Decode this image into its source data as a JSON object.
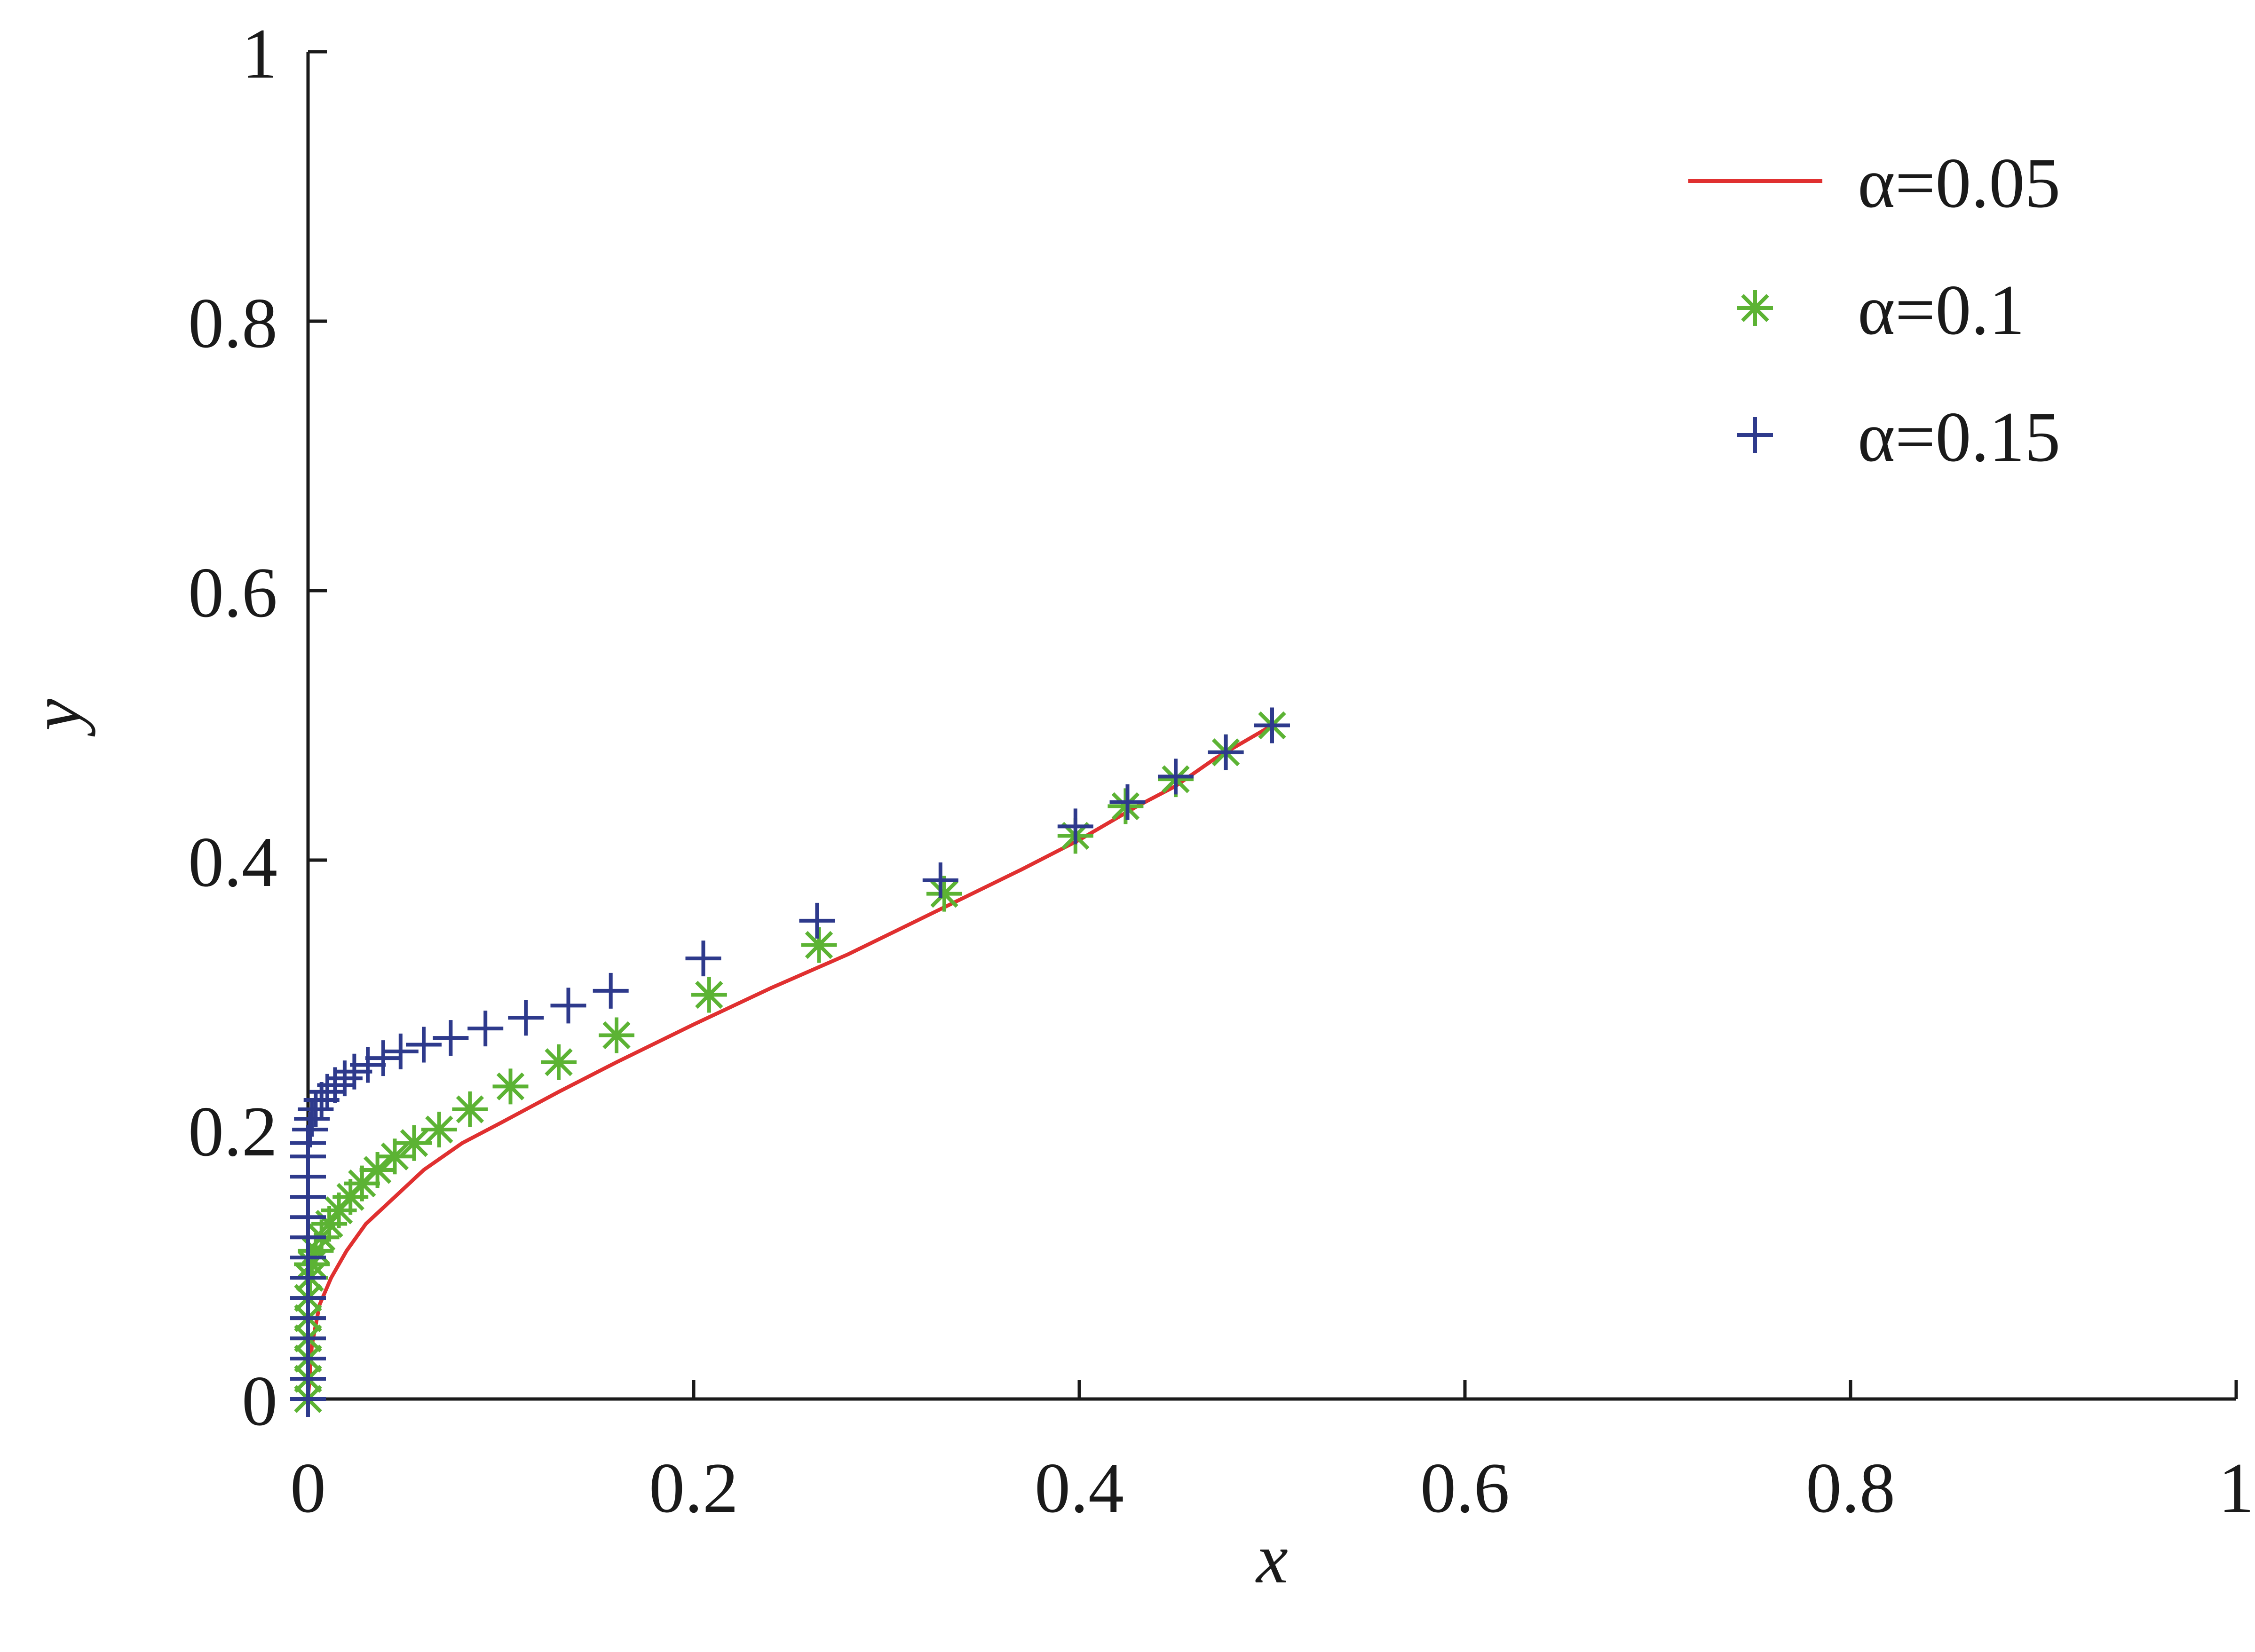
{
  "chart_data": {
    "type": "line",
    "title": "",
    "xlabel": "x",
    "ylabel": "y",
    "xlim": [
      0,
      1
    ],
    "ylim": [
      0,
      1
    ],
    "xticks": [
      0,
      0.2,
      0.4,
      0.6,
      0.8,
      1
    ],
    "yticks": [
      0,
      0.2,
      0.4,
      0.6,
      0.8,
      1
    ],
    "xtick_labels": [
      "0",
      "0.2",
      "0.4",
      "0.6",
      "0.8",
      "1"
    ],
    "ytick_labels": [
      "0",
      "0.2",
      "0.4",
      "0.6",
      "0.8",
      "1"
    ],
    "grid": false,
    "legend_position": "top-right",
    "series": [
      {
        "name": "α=0.05",
        "style": "line",
        "color": "#e03030",
        "x": [
          0,
          0.002,
          0.006,
          0.012,
          0.02,
          0.03,
          0.045,
          0.06,
          0.08,
          0.1,
          0.13,
          0.16,
          0.2,
          0.24,
          0.28,
          0.33,
          0.37,
          0.4,
          0.43,
          0.45,
          0.47,
          0.5
        ],
        "y": [
          0,
          0.04,
          0.07,
          0.09,
          0.11,
          0.13,
          0.15,
          0.17,
          0.19,
          0.205,
          0.228,
          0.25,
          0.278,
          0.305,
          0.33,
          0.365,
          0.393,
          0.415,
          0.44,
          0.455,
          0.475,
          0.5
        ]
      },
      {
        "name": "α=0.1",
        "style": "marker",
        "marker": "asterisk",
        "color": "#5cb334",
        "x": [
          0,
          0,
          0,
          0,
          0,
          0,
          0.001,
          0.002,
          0.004,
          0.007,
          0.011,
          0.016,
          0.022,
          0.028,
          0.036,
          0.045,
          0.055,
          0.068,
          0.084,
          0.105,
          0.13,
          0.16,
          0.208,
          0.265,
          0.33,
          0.398,
          0.424,
          0.45,
          0.476,
          0.5
        ],
        "y": [
          0,
          0.015,
          0.03,
          0.045,
          0.06,
          0.075,
          0.09,
          0.1,
          0.11,
          0.12,
          0.13,
          0.14,
          0.15,
          0.16,
          0.17,
          0.18,
          0.19,
          0.2,
          0.215,
          0.232,
          0.25,
          0.27,
          0.3,
          0.337,
          0.375,
          0.418,
          0.44,
          0.46,
          0.48,
          0.5
        ]
      },
      {
        "name": "α=0.15",
        "style": "marker",
        "marker": "plus",
        "color": "#2e3a8c",
        "x": [
          0,
          0,
          0,
          0,
          0,
          0,
          0,
          0,
          0,
          0,
          0,
          0,
          0,
          0,
          0.001,
          0.002,
          0.004,
          0.007,
          0.01,
          0.014,
          0.019,
          0.024,
          0.031,
          0.039,
          0.048,
          0.06,
          0.074,
          0.092,
          0.113,
          0.135,
          0.157,
          0.205,
          0.264,
          0.328,
          0.398,
          0.425,
          0.45,
          0.476,
          0.5
        ],
        "y": [
          0,
          0.015,
          0.03,
          0.045,
          0.06,
          0.075,
          0.09,
          0.105,
          0.12,
          0.135,
          0.15,
          0.165,
          0.18,
          0.19,
          0.2,
          0.208,
          0.215,
          0.222,
          0.228,
          0.233,
          0.238,
          0.243,
          0.248,
          0.253,
          0.258,
          0.263,
          0.268,
          0.275,
          0.283,
          0.292,
          0.303,
          0.327,
          0.355,
          0.385,
          0.425,
          0.443,
          0.462,
          0.48,
          0.5
        ]
      }
    ]
  }
}
